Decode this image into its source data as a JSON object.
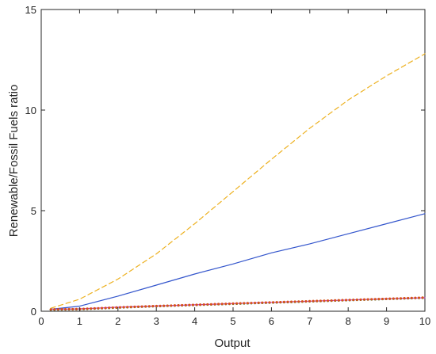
{
  "chart_data": {
    "type": "line",
    "xlabel": "Output",
    "ylabel": "Renewable/Fossil Fuels ratio",
    "xlim": [
      0,
      10
    ],
    "ylim": [
      0,
      15
    ],
    "xticks": [
      0,
      1,
      2,
      3,
      4,
      5,
      6,
      7,
      8,
      9,
      10
    ],
    "yticks": [
      0,
      5,
      10,
      15
    ],
    "xtick_labels": [
      "0",
      "1",
      "2",
      "3",
      "4",
      "5",
      "6",
      "7",
      "8",
      "9",
      "10"
    ],
    "ytick_labels": [
      "0",
      "5",
      "10",
      "15"
    ],
    "grid": false,
    "legend": "none",
    "x": [
      0.25,
      1,
      2,
      3,
      4,
      5,
      6,
      7,
      8,
      9,
      10
    ],
    "series": [
      {
        "color": "#EDB120",
        "style": "dashed",
        "values": [
          0.15,
          0.6,
          1.6,
          2.85,
          4.35,
          5.95,
          7.55,
          9.1,
          10.5,
          11.7,
          12.8
        ]
      },
      {
        "color": "#3355CC",
        "style": "solid",
        "values": [
          0.1,
          0.25,
          0.75,
          1.3,
          1.85,
          2.35,
          2.9,
          3.35,
          3.85,
          4.35,
          4.85
        ]
      },
      {
        "color": "#CC33CC",
        "style": "solid",
        "values": [
          0.1,
          0.12,
          0.2,
          0.26,
          0.32,
          0.38,
          0.44,
          0.5,
          0.56,
          0.62,
          0.67
        ]
      },
      {
        "color": "#2E7D32",
        "style": "dotted",
        "values": [
          0.08,
          0.1,
          0.18,
          0.25,
          0.31,
          0.37,
          0.43,
          0.49,
          0.55,
          0.61,
          0.67
        ]
      },
      {
        "color": "#D95319",
        "style": "dotted",
        "values": [
          0.09,
          0.11,
          0.19,
          0.26,
          0.32,
          0.38,
          0.44,
          0.5,
          0.56,
          0.62,
          0.68
        ]
      }
    ]
  },
  "colors": {
    "axis": "#262626",
    "background": "#ffffff"
  }
}
